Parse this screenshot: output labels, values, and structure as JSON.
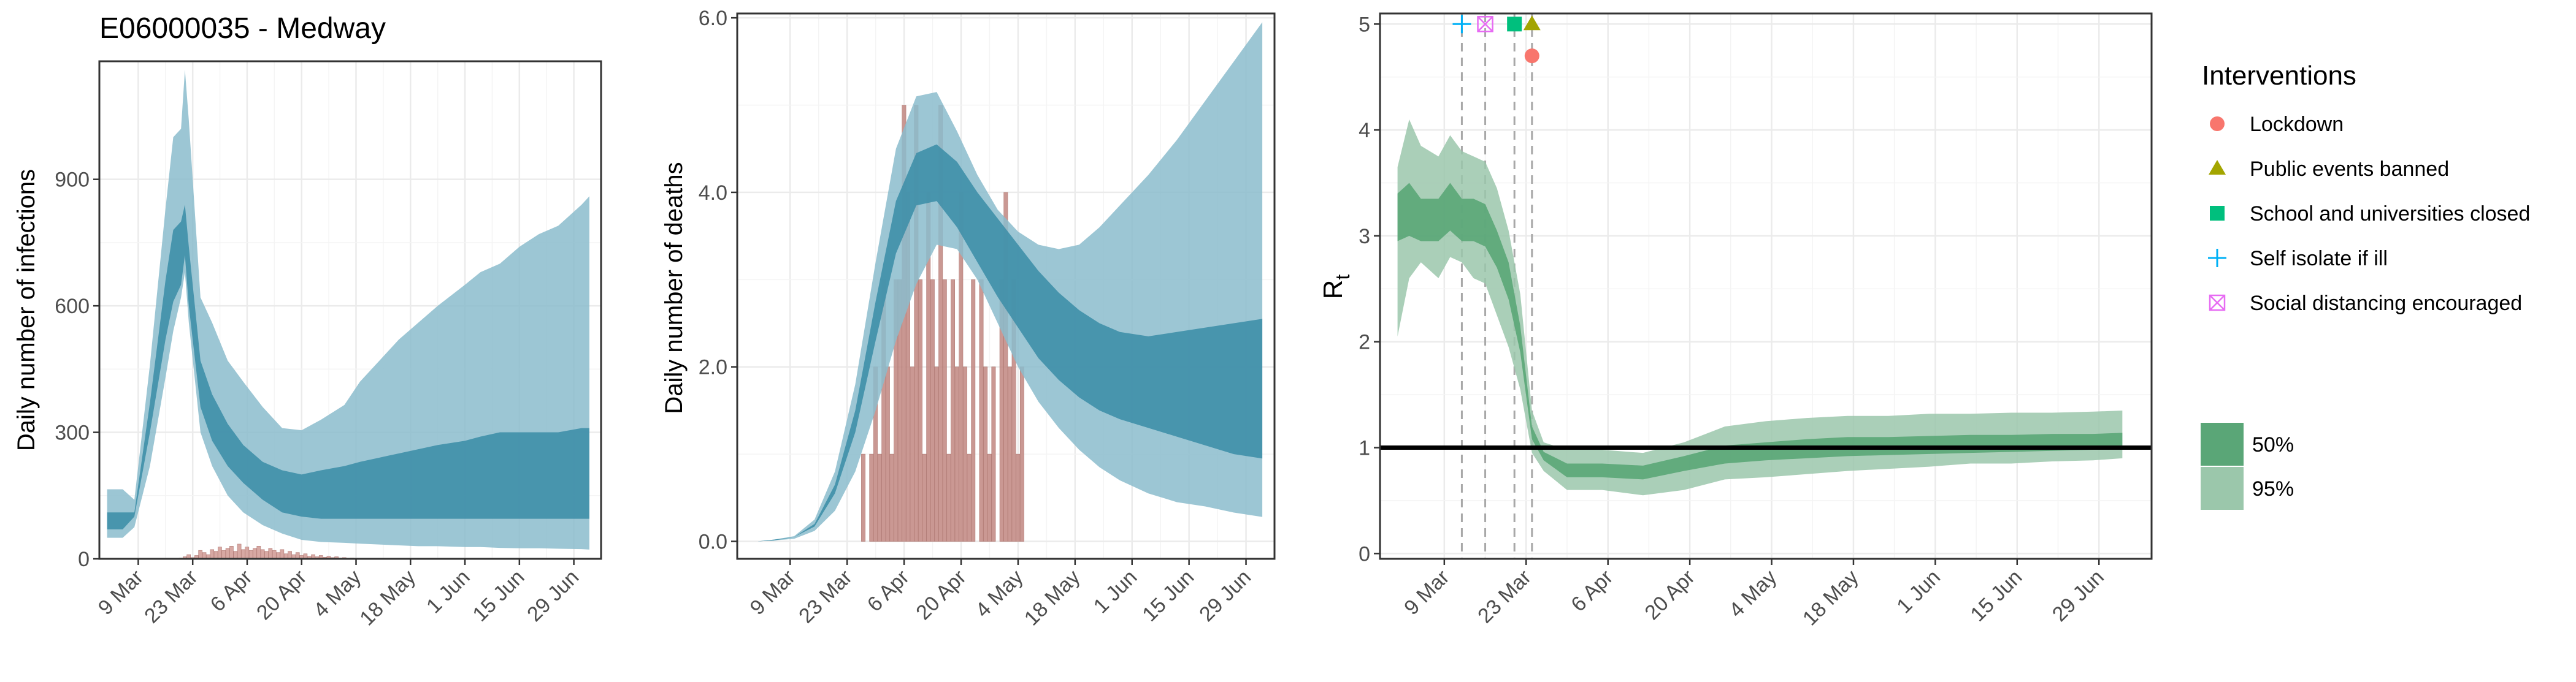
{
  "figure_title": "E06000035 - Medway",
  "colors": {
    "infection_bar": "#d39f99",
    "death_bar": "#c48d87",
    "band_95_blue": "#8bbccc",
    "band_50_blue": "#3f8fa8",
    "band_95_green": "#9bc7ab",
    "band_50_green": "#5aa677",
    "grid": "#ebebeb",
    "lockdown": "#F8766D",
    "public_events": "#A3A500",
    "schools": "#00BF7D",
    "self_isolate": "#00B0F6",
    "social_distancing": "#E76BF3"
  },
  "chart_data": [
    {
      "type": "area",
      "panel": "infections",
      "title": "E06000035 - Medway",
      "xlabel": "",
      "ylabel": "Daily number of infections",
      "x_ticks": [
        "9 Mar",
        "23 Mar",
        "6 Apr",
        "20 Apr",
        "4 May",
        "18 May",
        "1 Jun",
        "15 Jun",
        "29 Jun"
      ],
      "y_ticks": [
        "0",
        "300",
        "600",
        "900"
      ],
      "ylim": [
        0,
        1180
      ],
      "grid": true,
      "bars_observed": {
        "start": "2020-03-20",
        "values": [
          2,
          5,
          10,
          3,
          8,
          20,
          15,
          10,
          22,
          18,
          28,
          20,
          25,
          30,
          18,
          35,
          22,
          28,
          20,
          25,
          30,
          22,
          18,
          25,
          20,
          15,
          22,
          12,
          18,
          10,
          15,
          8,
          12,
          6,
          10,
          5,
          8,
          4,
          6,
          3,
          5,
          2,
          3,
          1,
          2,
          1,
          1
        ]
      },
      "series": [
        {
          "name": "95%",
          "x": [
            "2020-03-01",
            "2020-03-05",
            "2020-03-08",
            "2020-03-12",
            "2020-03-16",
            "2020-03-18",
            "2020-03-20",
            "2020-03-21",
            "2020-03-22",
            "2020-03-25",
            "2020-03-28",
            "2020-04-01",
            "2020-04-05",
            "2020-04-10",
            "2020-04-15",
            "2020-04-20",
            "2020-04-25",
            "2020-05-01",
            "2020-05-05",
            "2020-05-10",
            "2020-05-15",
            "2020-05-20",
            "2020-05-25",
            "2020-06-01",
            "2020-06-05",
            "2020-06-10",
            "2020-06-15",
            "2020-06-20",
            "2020-06-25",
            "2020-07-01",
            "2020-07-03"
          ],
          "lower": [
            50,
            50,
            75,
            220,
            430,
            540,
            620,
            680,
            560,
            300,
            220,
            150,
            110,
            80,
            60,
            45,
            40,
            38,
            36,
            34,
            32,
            30,
            30,
            28,
            28,
            26,
            25,
            25,
            24,
            23,
            22
          ],
          "upper": [
            165,
            165,
            140,
            460,
            830,
            1000,
            1020,
            1160,
            1040,
            620,
            560,
            470,
            420,
            360,
            310,
            305,
            330,
            365,
            420,
            470,
            520,
            560,
            600,
            650,
            680,
            700,
            740,
            770,
            790,
            840,
            860
          ]
        },
        {
          "name": "50%",
          "x": [
            "2020-03-01",
            "2020-03-05",
            "2020-03-08",
            "2020-03-12",
            "2020-03-16",
            "2020-03-18",
            "2020-03-20",
            "2020-03-21",
            "2020-03-22",
            "2020-03-25",
            "2020-03-28",
            "2020-04-01",
            "2020-04-05",
            "2020-04-10",
            "2020-04-15",
            "2020-04-20",
            "2020-04-25",
            "2020-05-01",
            "2020-05-05",
            "2020-05-10",
            "2020-05-15",
            "2020-05-20",
            "2020-05-25",
            "2020-06-01",
            "2020-06-05",
            "2020-06-10",
            "2020-06-15",
            "2020-06-20",
            "2020-06-25",
            "2020-07-01",
            "2020-07-03"
          ],
          "lower": [
            70,
            70,
            100,
            300,
            520,
            610,
            650,
            720,
            600,
            360,
            280,
            220,
            180,
            140,
            110,
            100,
            95,
            95,
            95,
            95,
            95,
            95,
            95,
            95,
            95,
            95,
            95,
            95,
            95,
            95,
            95
          ],
          "upper": [
            110,
            110,
            110,
            370,
            660,
            780,
            800,
            840,
            740,
            470,
            390,
            320,
            270,
            230,
            210,
            200,
            210,
            220,
            230,
            240,
            250,
            260,
            270,
            280,
            290,
            300,
            300,
            300,
            300,
            310,
            310
          ]
        }
      ]
    },
    {
      "type": "area",
      "panel": "deaths",
      "xlabel": "",
      "ylabel": "Daily number of deaths",
      "x_ticks": [
        "9 Mar",
        "23 Mar",
        "6 Apr",
        "20 Apr",
        "4 May",
        "18 May",
        "1 Jun",
        "15 Jun",
        "29 Jun"
      ],
      "y_ticks": [
        "0.0",
        "2.0",
        "4.0",
        "6.0"
      ],
      "ylim": [
        -0.2,
        6.05
      ],
      "grid": true,
      "bars_observed": {
        "start": "2020-03-27",
        "values": [
          1,
          0,
          1,
          2,
          1,
          3,
          2,
          1,
          3,
          3,
          5,
          4,
          2,
          5,
          3,
          1,
          4,
          3,
          2,
          5,
          3,
          1,
          3,
          2,
          4,
          2,
          1,
          3,
          0,
          3,
          2,
          1,
          2,
          0,
          3,
          4,
          2,
          3,
          1,
          2
        ]
      },
      "series": [
        {
          "name": "95%",
          "x": [
            "2020-03-01",
            "2020-03-05",
            "2020-03-10",
            "2020-03-15",
            "2020-03-20",
            "2020-03-25",
            "2020-03-30",
            "2020-04-04",
            "2020-04-09",
            "2020-04-14",
            "2020-04-19",
            "2020-04-24",
            "2020-04-29",
            "2020-05-04",
            "2020-05-09",
            "2020-05-14",
            "2020-05-19",
            "2020-05-24",
            "2020-05-29",
            "2020-06-05",
            "2020-06-12",
            "2020-06-19",
            "2020-06-26",
            "2020-07-03"
          ],
          "lower": [
            0,
            0.01,
            0.03,
            0.12,
            0.35,
            0.8,
            1.5,
            2.3,
            2.95,
            3.4,
            3.35,
            3.0,
            2.5,
            2.0,
            1.6,
            1.3,
            1.05,
            0.85,
            0.7,
            0.55,
            0.45,
            0.4,
            0.33,
            0.28
          ],
          "upper": [
            0,
            0.02,
            0.06,
            0.25,
            0.8,
            1.8,
            3.2,
            4.5,
            5.1,
            5.15,
            4.7,
            4.2,
            3.8,
            3.55,
            3.4,
            3.35,
            3.4,
            3.6,
            3.85,
            4.2,
            4.6,
            5.05,
            5.5,
            5.95
          ]
        },
        {
          "name": "50%",
          "x": [
            "2020-03-01",
            "2020-03-05",
            "2020-03-10",
            "2020-03-15",
            "2020-03-20",
            "2020-03-25",
            "2020-03-30",
            "2020-04-04",
            "2020-04-09",
            "2020-04-14",
            "2020-04-19",
            "2020-04-24",
            "2020-04-29",
            "2020-05-04",
            "2020-05-09",
            "2020-05-14",
            "2020-05-19",
            "2020-05-24",
            "2020-05-29",
            "2020-06-05",
            "2020-06-12",
            "2020-06-19",
            "2020-06-26",
            "2020-07-03"
          ],
          "lower": [
            0,
            0.01,
            0.05,
            0.17,
            0.55,
            1.25,
            2.3,
            3.3,
            3.85,
            3.9,
            3.6,
            3.2,
            2.8,
            2.45,
            2.1,
            1.85,
            1.65,
            1.5,
            1.4,
            1.3,
            1.2,
            1.1,
            1.0,
            0.95
          ],
          "upper": [
            0,
            0.02,
            0.05,
            0.2,
            0.65,
            1.5,
            2.75,
            3.9,
            4.45,
            4.55,
            4.35,
            4.0,
            3.7,
            3.4,
            3.1,
            2.85,
            2.65,
            2.5,
            2.4,
            2.35,
            2.4,
            2.45,
            2.5,
            2.55
          ]
        }
      ]
    },
    {
      "type": "area",
      "panel": "rt",
      "xlabel": "",
      "ylabel": "R",
      "ylabel_subscript": "t",
      "x_ticks": [
        "9 Mar",
        "23 Mar",
        "6 Apr",
        "20 Apr",
        "4 May",
        "18 May",
        "1 Jun",
        "15 Jun",
        "29 Jun"
      ],
      "y_ticks": [
        "0",
        "1",
        "2",
        "3",
        "4",
        "5"
      ],
      "ylim": [
        -0.05,
        5.1
      ],
      "grid": true,
      "reference_line": 1,
      "intervention_dates": [
        "2020-03-12",
        "2020-03-16",
        "2020-03-21",
        "2020-03-24"
      ],
      "interventions": [
        {
          "label": "Lockdown",
          "date": "2020-03-24",
          "y": 4.7,
          "marker": "circle"
        },
        {
          "label": "Public events banned",
          "date": "2020-03-24",
          "y": 5.0,
          "marker": "triangle"
        },
        {
          "label": "School and universities closed",
          "date": "2020-03-21",
          "y": 5.0,
          "marker": "square"
        },
        {
          "label": "Self isolate if ill",
          "date": "2020-03-12",
          "y": 5.0,
          "marker": "plus"
        },
        {
          "label": "Social distancing encouraged",
          "date": "2020-03-16",
          "y": 5.0,
          "marker": "boxx"
        }
      ],
      "series": [
        {
          "name": "95%",
          "x": [
            "2020-03-01",
            "2020-03-03",
            "2020-03-05",
            "2020-03-08",
            "2020-03-10",
            "2020-03-12",
            "2020-03-14",
            "2020-03-16",
            "2020-03-18",
            "2020-03-20",
            "2020-03-22",
            "2020-03-24",
            "2020-03-26",
            "2020-03-30",
            "2020-04-05",
            "2020-04-12",
            "2020-04-19",
            "2020-04-26",
            "2020-05-03",
            "2020-05-10",
            "2020-05-17",
            "2020-05-24",
            "2020-05-31",
            "2020-06-07",
            "2020-06-14",
            "2020-06-21",
            "2020-06-28",
            "2020-07-03"
          ],
          "lower": [
            2.05,
            2.6,
            2.75,
            2.6,
            2.8,
            2.75,
            2.6,
            2.55,
            2.25,
            1.95,
            1.55,
            0.95,
            0.78,
            0.6,
            0.6,
            0.55,
            0.6,
            0.7,
            0.72,
            0.75,
            0.78,
            0.8,
            0.82,
            0.85,
            0.85,
            0.87,
            0.88,
            0.9
          ],
          "upper": [
            3.65,
            4.1,
            3.85,
            3.75,
            3.95,
            3.8,
            3.75,
            3.7,
            3.45,
            3.05,
            2.45,
            1.35,
            1.05,
            0.98,
            0.98,
            0.95,
            1.05,
            1.2,
            1.25,
            1.28,
            1.3,
            1.3,
            1.32,
            1.32,
            1.33,
            1.33,
            1.34,
            1.35
          ]
        },
        {
          "name": "50%",
          "x": [
            "2020-03-01",
            "2020-03-03",
            "2020-03-05",
            "2020-03-08",
            "2020-03-10",
            "2020-03-12",
            "2020-03-14",
            "2020-03-16",
            "2020-03-18",
            "2020-03-20",
            "2020-03-22",
            "2020-03-24",
            "2020-03-26",
            "2020-03-30",
            "2020-04-05",
            "2020-04-12",
            "2020-04-19",
            "2020-04-26",
            "2020-05-03",
            "2020-05-10",
            "2020-05-17",
            "2020-05-24",
            "2020-05-31",
            "2020-06-07",
            "2020-06-14",
            "2020-06-21",
            "2020-06-28",
            "2020-07-03"
          ],
          "lower": [
            2.95,
            3.0,
            2.95,
            2.95,
            3.05,
            2.95,
            2.95,
            2.9,
            2.7,
            2.4,
            1.9,
            1.08,
            0.88,
            0.72,
            0.72,
            0.7,
            0.78,
            0.85,
            0.88,
            0.9,
            0.92,
            0.93,
            0.94,
            0.95,
            0.96,
            0.97,
            0.98,
            0.98
          ],
          "upper": [
            3.4,
            3.5,
            3.35,
            3.35,
            3.5,
            3.35,
            3.35,
            3.3,
            3.05,
            2.75,
            2.15,
            1.2,
            0.96,
            0.85,
            0.85,
            0.83,
            0.92,
            1.02,
            1.05,
            1.08,
            1.1,
            1.1,
            1.11,
            1.12,
            1.12,
            1.13,
            1.13,
            1.14
          ]
        }
      ]
    }
  ],
  "legend": {
    "title": "Interventions",
    "items": [
      "Lockdown",
      "Public events banned",
      "School and universities closed",
      "Self isolate if ill",
      "Social distancing encouraged"
    ],
    "band_labels": [
      "50%",
      "95%"
    ]
  }
}
